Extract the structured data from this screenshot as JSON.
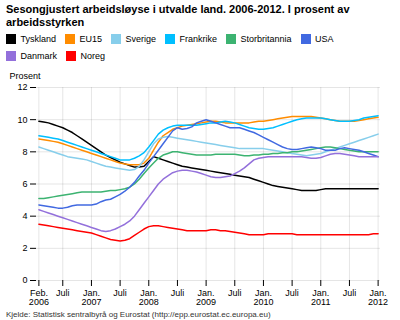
{
  "chart_data": {
    "type": "line",
    "title": "Sesongjustert arbeidsløyse i utvalde land. 2006-2012. I prosent av arbeidsstyrken",
    "ylabel": "Prosent",
    "source": "Kjelde: Statistisk sentralbyrå og Eurostat (http://epp.eurostat.ec.europa.eu)",
    "categories": [
      "Feb.\n2006",
      null,
      null,
      null,
      null,
      "Juli",
      null,
      null,
      null,
      null,
      null,
      "Jan.\n2007",
      null,
      null,
      null,
      null,
      null,
      "Juli",
      null,
      null,
      null,
      null,
      null,
      "Jan.\n2008",
      null,
      null,
      null,
      null,
      null,
      "Juli",
      null,
      null,
      null,
      null,
      null,
      "Jan.\n2009",
      null,
      null,
      null,
      null,
      null,
      "Juli",
      null,
      null,
      null,
      null,
      null,
      "Jan.\n2010",
      null,
      null,
      null,
      null,
      null,
      "Juli",
      null,
      null,
      null,
      null,
      null,
      "Jan.\n2011",
      null,
      null,
      null,
      null,
      null,
      "Juli",
      null,
      null,
      null,
      null,
      null,
      "Jan.\n2012"
    ],
    "series": [
      {
        "name": "Tyskland",
        "color": "#000000",
        "values": [
          9.9,
          9.85,
          9.8,
          9.7,
          9.6,
          9.5,
          9.35,
          9.2,
          9.0,
          8.8,
          8.6,
          8.4,
          8.2,
          8.0,
          7.8,
          7.65,
          7.5,
          7.35,
          7.25,
          7.15,
          7.05,
          7.05,
          7.1,
          7.4,
          7.7,
          7.6,
          7.5,
          7.4,
          7.3,
          7.2,
          7.1,
          7.05,
          7.0,
          6.95,
          6.9,
          6.85,
          6.8,
          6.75,
          6.7,
          6.65,
          6.6,
          6.55,
          6.5,
          6.45,
          6.4,
          6.3,
          6.2,
          6.1,
          6.0,
          5.9,
          5.85,
          5.8,
          5.75,
          5.7,
          5.65,
          5.6,
          5.6,
          5.6,
          5.6,
          5.65,
          5.7,
          5.7,
          5.7,
          5.7,
          5.7,
          5.7,
          5.7,
          5.7,
          5.7,
          5.7,
          5.7,
          5.7
        ]
      },
      {
        "name": "EU15",
        "color": "#FF8C00",
        "values": [
          8.8,
          8.75,
          8.7,
          8.65,
          8.6,
          8.5,
          8.4,
          8.3,
          8.2,
          8.1,
          8.0,
          7.9,
          7.8,
          7.7,
          7.6,
          7.5,
          7.4,
          7.3,
          7.25,
          7.2,
          7.2,
          7.2,
          7.3,
          7.6,
          8.1,
          8.6,
          9.0,
          9.2,
          9.4,
          9.5,
          9.6,
          9.65,
          9.7,
          9.75,
          9.8,
          9.85,
          9.9,
          9.9,
          9.85,
          9.8,
          9.8,
          9.8,
          9.8,
          9.8,
          9.8,
          9.85,
          9.9,
          9.9,
          9.95,
          10.0,
          10.05,
          10.1,
          10.15,
          10.2,
          10.2,
          10.2,
          10.2,
          10.2,
          10.15,
          10.1,
          10.05,
          10.0,
          9.95,
          9.9,
          9.9,
          9.9,
          9.9,
          9.95,
          10.0,
          10.05,
          10.1,
          10.15
        ]
      },
      {
        "name": "Sverige",
        "color": "#87CEEB",
        "values": [
          8.3,
          8.2,
          8.1,
          8.0,
          7.9,
          7.8,
          7.7,
          7.65,
          7.6,
          7.55,
          7.5,
          7.4,
          7.3,
          7.2,
          7.1,
          7.05,
          7.0,
          6.95,
          6.9,
          6.85,
          6.9,
          7.1,
          7.5,
          8.0,
          8.5,
          8.8,
          8.9,
          8.95,
          8.9,
          8.85,
          8.8,
          8.75,
          8.7,
          8.65,
          8.6,
          8.55,
          8.5,
          8.45,
          8.4,
          8.35,
          8.3,
          8.25,
          8.2,
          8.2,
          8.2,
          8.2,
          8.2,
          8.2,
          8.15,
          8.1,
          8.05,
          8.0,
          7.95,
          7.9,
          7.85,
          7.8,
          7.75,
          7.8,
          7.85,
          7.9,
          8.0,
          8.1,
          8.2,
          8.3,
          8.4,
          8.5,
          8.6,
          8.7,
          8.8,
          8.9,
          9.0,
          9.1
        ]
      },
      {
        "name": "Frankrike",
        "color": "#00BFFF",
        "values": [
          9.0,
          8.95,
          8.9,
          8.85,
          8.8,
          8.7,
          8.6,
          8.5,
          8.4,
          8.3,
          8.2,
          8.1,
          8.0,
          7.9,
          7.8,
          7.7,
          7.6,
          7.5,
          7.5,
          7.5,
          7.6,
          7.75,
          7.95,
          8.3,
          8.7,
          9.1,
          9.35,
          9.5,
          9.6,
          9.65,
          9.65,
          9.65,
          9.65,
          9.65,
          9.7,
          9.75,
          9.8,
          9.8,
          9.85,
          9.9,
          9.85,
          9.8,
          9.7,
          9.6,
          9.5,
          9.45,
          9.4,
          9.4,
          9.45,
          9.5,
          9.6,
          9.7,
          9.8,
          9.9,
          10.0,
          10.05,
          10.1,
          10.1,
          10.1,
          10.1,
          10.05,
          10.0,
          9.95,
          9.9,
          9.9,
          9.9,
          9.95,
          10.0,
          10.1,
          10.15,
          10.2,
          10.25
        ]
      },
      {
        "name": "Storbritannia",
        "color": "#3CB371",
        "values": [
          5.1,
          5.1,
          5.15,
          5.2,
          5.25,
          5.3,
          5.35,
          5.4,
          5.45,
          5.5,
          5.5,
          5.5,
          5.5,
          5.5,
          5.55,
          5.6,
          5.6,
          5.65,
          5.7,
          5.8,
          6.0,
          6.3,
          6.65,
          7.0,
          7.3,
          7.6,
          7.8,
          7.9,
          8.0,
          8.0,
          7.95,
          7.9,
          7.85,
          7.8,
          7.8,
          7.8,
          7.8,
          7.85,
          7.85,
          7.85,
          7.85,
          7.85,
          7.8,
          7.75,
          7.75,
          7.8,
          7.8,
          7.85,
          7.85,
          7.9,
          7.9,
          7.95,
          7.95,
          8.0,
          8.0,
          8.05,
          8.1,
          8.15,
          8.2,
          8.25,
          8.3,
          8.3,
          8.25,
          8.2,
          8.15,
          8.1,
          8.05,
          8.0,
          8.0,
          8.0,
          8.0,
          8.0
        ]
      },
      {
        "name": "USA",
        "color": "#4169E1",
        "values": [
          4.7,
          4.65,
          4.6,
          4.55,
          4.5,
          4.5,
          4.55,
          4.65,
          4.7,
          4.7,
          4.7,
          4.7,
          4.75,
          4.9,
          5.0,
          5.05,
          5.2,
          5.35,
          5.55,
          5.8,
          6.1,
          6.5,
          6.85,
          7.3,
          7.7,
          8.1,
          8.5,
          8.9,
          9.3,
          9.5,
          9.4,
          9.45,
          9.55,
          9.8,
          9.9,
          10.0,
          9.9,
          9.8,
          9.7,
          9.6,
          9.5,
          9.5,
          9.5,
          9.4,
          9.3,
          9.2,
          9.05,
          8.9,
          8.75,
          8.6,
          8.45,
          8.3,
          8.2,
          8.15,
          8.15,
          8.2,
          8.25,
          8.3,
          8.25,
          8.2,
          8.1,
          8.1,
          8.1,
          8.2,
          8.25,
          8.2,
          8.15,
          8.1,
          8.0,
          7.9,
          7.8,
          7.7
        ]
      },
      {
        "name": "Danmark",
        "color": "#9370DB",
        "values": [
          4.4,
          4.3,
          4.2,
          4.1,
          4.0,
          3.9,
          3.8,
          3.7,
          3.6,
          3.5,
          3.4,
          3.3,
          3.2,
          3.1,
          3.05,
          3.1,
          3.2,
          3.35,
          3.5,
          3.7,
          4.0,
          4.4,
          4.8,
          5.2,
          5.6,
          6.0,
          6.3,
          6.5,
          6.7,
          6.8,
          6.85,
          6.85,
          6.8,
          6.75,
          6.65,
          6.55,
          6.45,
          6.4,
          6.4,
          6.45,
          6.5,
          6.65,
          6.8,
          7.0,
          7.25,
          7.5,
          7.6,
          7.65,
          7.7,
          7.7,
          7.7,
          7.7,
          7.7,
          7.7,
          7.7,
          7.7,
          7.65,
          7.6,
          7.6,
          7.65,
          7.75,
          7.85,
          7.9,
          7.9,
          7.85,
          7.8,
          7.75,
          7.7,
          7.7,
          7.7,
          7.7,
          7.7
        ]
      },
      {
        "name": "Noreg",
        "color": "#FF0000",
        "values": [
          3.5,
          3.45,
          3.4,
          3.35,
          3.3,
          3.25,
          3.2,
          3.15,
          3.1,
          3.05,
          3.0,
          2.95,
          2.85,
          2.75,
          2.65,
          2.55,
          2.5,
          2.45,
          2.5,
          2.6,
          2.8,
          3.0,
          3.2,
          3.35,
          3.4,
          3.4,
          3.35,
          3.3,
          3.25,
          3.2,
          3.15,
          3.1,
          3.1,
          3.1,
          3.1,
          3.1,
          3.15,
          3.15,
          3.1,
          3.1,
          3.05,
          3.0,
          2.95,
          2.9,
          2.85,
          2.85,
          2.85,
          2.85,
          2.9,
          2.9,
          2.9,
          2.9,
          2.9,
          2.9,
          2.85,
          2.85,
          2.85,
          2.85,
          2.85,
          2.85,
          2.85,
          2.85,
          2.85,
          2.85,
          2.85,
          2.85,
          2.85,
          2.85,
          2.85,
          2.85,
          2.9,
          2.9
        ]
      }
    ],
    "ylim": [
      0,
      12
    ],
    "yticks": [
      0,
      2,
      4,
      6,
      8,
      10,
      12
    ],
    "grid": true,
    "legend": "top"
  }
}
